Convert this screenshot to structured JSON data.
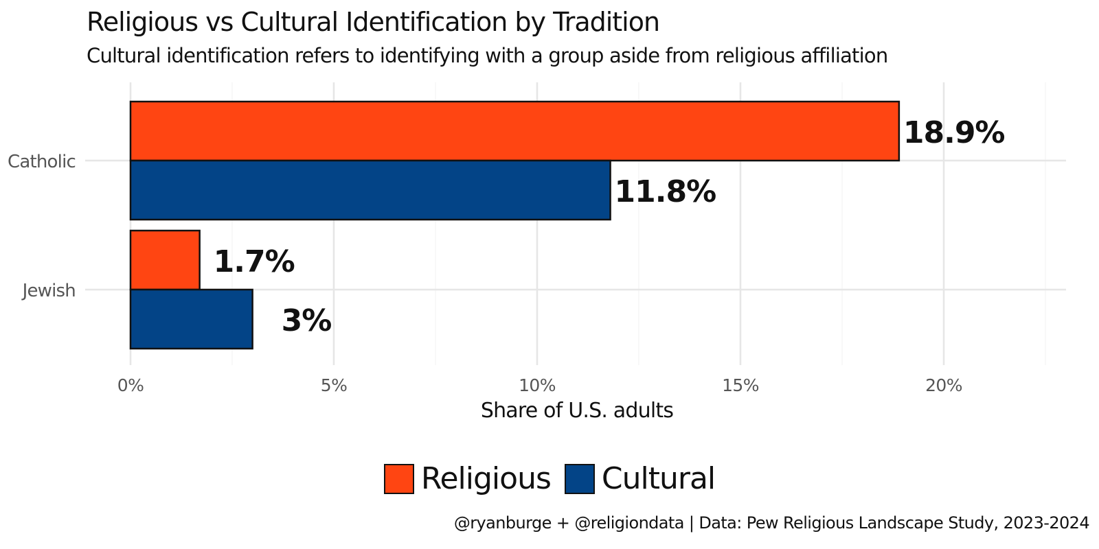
{
  "header": {
    "title": "Religious vs Cultural Identification by Tradition",
    "subtitle": "Cultural identification refers to identifying with a group aside from religious affiliation"
  },
  "footer": {
    "caption": "@ryanburge + @religiondata | Data: Pew Religious Landscape Study, 2023-2024"
  },
  "chart_data": {
    "type": "bar",
    "orientation": "horizontal",
    "title": "Religious vs Cultural Identification by Tradition",
    "subtitle": "Cultural identification refers to identifying with a group aside from religious affiliation",
    "categories": [
      "Catholic",
      "Jewish"
    ],
    "series": [
      {
        "name": "Religious",
        "color": "#FF4512",
        "values": [
          18.9,
          1.7
        ],
        "labels": [
          "18.9%",
          "1.7%"
        ]
      },
      {
        "name": "Cultural",
        "color": "#034487",
        "values": [
          11.8,
          3.0
        ],
        "labels": [
          "11.8%",
          "3%"
        ]
      }
    ],
    "xlabel": "Share of U.S. adults",
    "ylabel": "",
    "xlim": [
      0,
      23
    ],
    "xticks": [
      0,
      5,
      10,
      15,
      20
    ],
    "xtick_labels": [
      "0%",
      "5%",
      "10%",
      "15%",
      "20%"
    ],
    "grid": true,
    "legend_position": "bottom"
  }
}
